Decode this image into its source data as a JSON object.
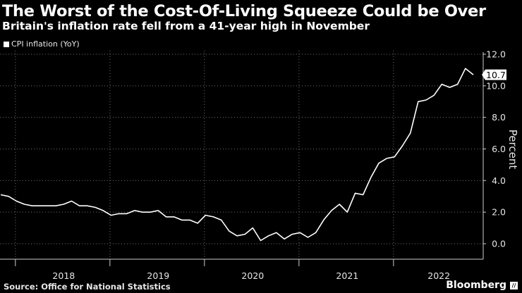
{
  "chart_data": {
    "type": "line",
    "title": "The Worst of the Cost-Of-Living Squeeze Could be Over",
    "subtitle": "Britain's inflation rate fell from a 41-year high in November",
    "ylabel": "Percent",
    "ylim": [
      -1.0,
      12.0
    ],
    "yticks": [
      0.0,
      2.0,
      4.0,
      6.0,
      8.0,
      10.0,
      12.0
    ],
    "ytick_labels": [
      "0.0",
      "2.0",
      "4.0",
      "6.0",
      "8.0",
      "10.0",
      "12.0"
    ],
    "x_start": "2017-11",
    "x_end": "2022-11",
    "year_labels": [
      "2018",
      "2019",
      "2020",
      "2021",
      "2022"
    ],
    "last_value_label": "10.7",
    "series": [
      {
        "name": "CPI inflation (YoY)",
        "color": "#ffffff",
        "values": [
          3.1,
          3.0,
          2.7,
          2.5,
          2.4,
          2.4,
          2.4,
          2.4,
          2.5,
          2.7,
          2.4,
          2.4,
          2.3,
          2.1,
          1.8,
          1.9,
          1.9,
          2.1,
          2.0,
          2.0,
          2.1,
          1.7,
          1.7,
          1.5,
          1.5,
          1.3,
          1.8,
          1.7,
          1.5,
          0.8,
          0.5,
          0.6,
          1.0,
          0.2,
          0.5,
          0.7,
          0.3,
          0.6,
          0.7,
          0.4,
          0.7,
          1.5,
          2.1,
          2.5,
          2.0,
          3.2,
          3.1,
          4.2,
          5.1,
          5.4,
          5.5,
          6.2,
          7.0,
          9.0,
          9.1,
          9.4,
          10.1,
          9.9,
          10.1,
          11.1,
          10.7
        ]
      }
    ]
  },
  "footer": {
    "source": "Source: Office for National Statistics",
    "brand": "Bloomberg"
  },
  "colors": {
    "background": "#000000",
    "line": "#ffffff",
    "grid": "#6f6f6f",
    "text": "#e6e6e6"
  }
}
